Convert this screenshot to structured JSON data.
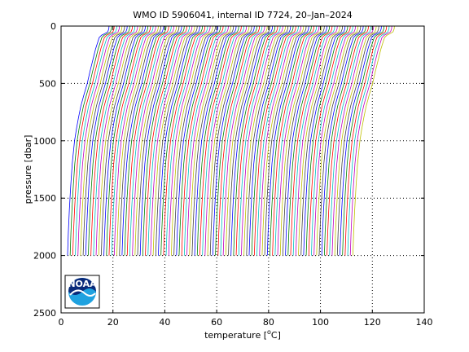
{
  "chart_data": {
    "type": "line",
    "title": "WMO ID 5906041, internal ID 7724, 20–Jan–2024",
    "xlabel_prefix": "temperature [",
    "xlabel_unit_sup": "o",
    "xlabel_suffix": "C]",
    "ylabel": "pressure [dbar]",
    "xlim": [
      0,
      140
    ],
    "ylim": [
      0,
      2500
    ],
    "y_reversed": true,
    "grid": true,
    "x_ticks": [
      "0",
      "20",
      "40",
      "60",
      "80",
      "100",
      "120",
      "140"
    ],
    "y_ticks": [
      "0",
      "500",
      "1000",
      "1500",
      "2000",
      "2500"
    ],
    "profile_count": 111,
    "profile_offset_step": 1,
    "base_profile": {
      "pressure": [
        0,
        25,
        50,
        60,
        80,
        100,
        200,
        300,
        400,
        500,
        600,
        700,
        800,
        900,
        1000,
        1200,
        1400,
        1600,
        1800,
        2000
      ],
      "temperature": [
        18.5,
        18.4,
        18.0,
        17.3,
        15.6,
        14.7,
        13.3,
        12.2,
        11.1,
        10.1,
        8.8,
        7.6,
        6.7,
        5.9,
        5.2,
        4.3,
        3.7,
        3.2,
        2.8,
        2.5
      ]
    },
    "series_colors": [
      "#0000ff",
      "#008000",
      "#ff0000",
      "#00bfbf",
      "#bf00bf",
      "#bfbf00",
      "#404040"
    ]
  },
  "logo": {
    "text": "NOAA",
    "icon": "noaa-logo"
  }
}
